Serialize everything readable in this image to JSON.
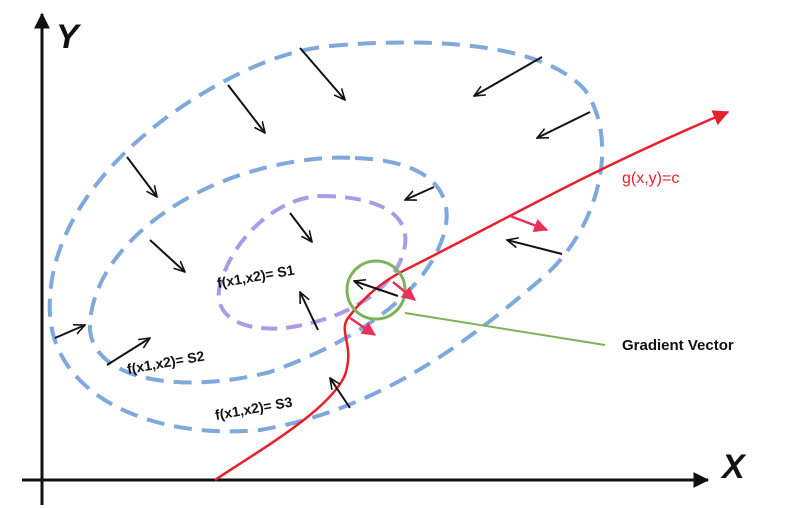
{
  "axes": {
    "x_label": "X",
    "y_label": "Y"
  },
  "level_sets": {
    "s1": "f(x1,x2)= S1",
    "s2": "f(x1,x2)= S2",
    "s3": "f(x1,x2)= S3"
  },
  "constraint_label": "g(x,y)=c",
  "callout_label": "Gradient Vector",
  "colors": {
    "axis": "#111111",
    "outer_contour": "#7fa8dc",
    "inner_contour": "#a99be8",
    "constraint": "#e8202a",
    "gradient_arrow": "#e8305a",
    "callout": "#7db25a",
    "vector": "#111111"
  }
}
